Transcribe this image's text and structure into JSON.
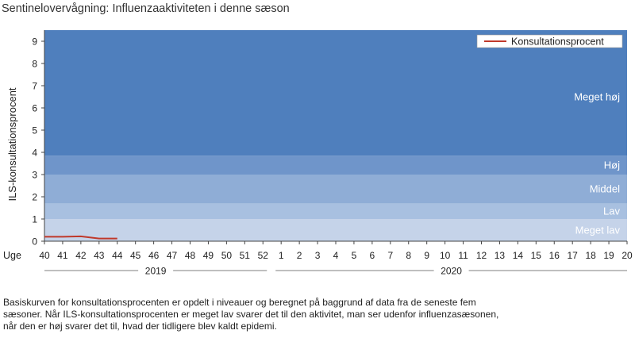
{
  "title": "Sentinelovervågning: Influenzaaktiviteten i denne sæson",
  "note_lines": [
    "Basiskurven for konsultationsprocenten er opdelt i niveauer og beregnet på baggrund af data fra de seneste fem",
    "sæsoner. Når ILS-konsultationsprocenten er meget lav svarer det til den aktivitet, man ser udenfor influenzasæsonen,",
    "når den er høj svarer det til, hvad der tidligere blev kaldt epidemi."
  ],
  "chart_data": {
    "type": "line",
    "ylabel": "ILS-konsultationsprocent",
    "xlabel_prefix": "Uge",
    "ylim": [
      0,
      9.5
    ],
    "yticks": [
      0,
      1,
      2,
      3,
      4,
      5,
      6,
      7,
      8,
      9
    ],
    "weeks": [
      "40",
      "41",
      "42",
      "43",
      "44",
      "45",
      "46",
      "47",
      "48",
      "49",
      "50",
      "51",
      "52",
      "1",
      "2",
      "3",
      "4",
      "5",
      "6",
      "7",
      "8",
      "9",
      "10",
      "11",
      "12",
      "13",
      "14",
      "15",
      "16",
      "17",
      "18",
      "19",
      "20"
    ],
    "year_groups": [
      {
        "label": "2019",
        "from": "40",
        "to": "52"
      },
      {
        "label": "2020",
        "from": "1",
        "to": "20"
      }
    ],
    "bands": [
      {
        "label": "Meget lav",
        "from": 0,
        "to": 1.0,
        "color": "#c5d3e9"
      },
      {
        "label": "Lav",
        "from": 1.0,
        "to": 1.7,
        "color": "#a8c0e0"
      },
      {
        "label": "Middel",
        "from": 1.7,
        "to": 3.0,
        "color": "#8fadd6"
      },
      {
        "label": "Høj",
        "from": 3.0,
        "to": 3.85,
        "color": "#6f95ca"
      },
      {
        "label": "Meget høj",
        "from": 3.85,
        "to": 9.5,
        "color": "#4f7fbd"
      }
    ],
    "series": [
      {
        "name": "Konsultationsprocent",
        "color": "#c0392b",
        "x": [
          "40",
          "41",
          "42",
          "43",
          "44"
        ],
        "values": [
          0.2,
          0.2,
          0.22,
          0.12,
          0.12
        ]
      }
    ],
    "legend_position": "top-right",
    "grid": false
  }
}
